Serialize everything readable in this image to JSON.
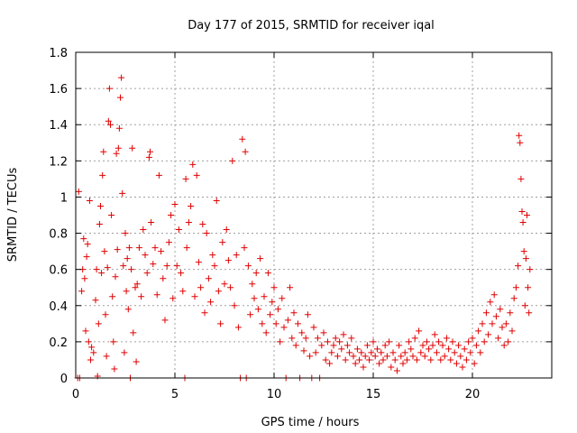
{
  "chart_data": {
    "type": "scatter",
    "title": "Day 177 of 2015, SRMTID for receiver iqal",
    "xlabel": "GPS time / hours",
    "ylabel": "SRMTID / TECUs",
    "xlim": [
      0,
      24
    ],
    "ylim": [
      0,
      1.8
    ],
    "xticks": [
      0,
      5,
      10,
      15,
      20
    ],
    "xtick_labels": [
      "0",
      "5",
      "10",
      "15",
      "20"
    ],
    "yticks": [
      0,
      0.2,
      0.4,
      0.6,
      0.8,
      1.0,
      1.2,
      1.4,
      1.6,
      1.8
    ],
    "ytick_labels": [
      "0",
      "0.2",
      "0.4",
      "0.6",
      "0.8",
      "1",
      "1.2",
      "1.4",
      "1.6",
      "1.8"
    ],
    "grid": true,
    "marker": "+",
    "color": "#e00000",
    "series": [
      {
        "name": "SRMTID",
        "points": [
          [
            0.1,
            0.0
          ],
          [
            0.15,
            1.03
          ],
          [
            0.2,
            0.0
          ],
          [
            0.3,
            0.48
          ],
          [
            0.35,
            0.6
          ],
          [
            0.4,
            0.77
          ],
          [
            0.45,
            0.55
          ],
          [
            0.5,
            0.26
          ],
          [
            0.55,
            0.67
          ],
          [
            0.6,
            0.74
          ],
          [
            0.65,
            0.2
          ],
          [
            0.7,
            0.98
          ],
          [
            0.75,
            0.1
          ],
          [
            0.8,
            0.17
          ],
          [
            0.9,
            0.14
          ],
          [
            1.0,
            0.43
          ],
          [
            1.05,
            0.6
          ],
          [
            1.1,
            0.01
          ],
          [
            1.15,
            0.3
          ],
          [
            1.2,
            0.85
          ],
          [
            1.25,
            0.95
          ],
          [
            1.3,
            0.58
          ],
          [
            1.35,
            1.12
          ],
          [
            1.4,
            1.25
          ],
          [
            1.45,
            0.7
          ],
          [
            1.5,
            0.35
          ],
          [
            1.55,
            0.12
          ],
          [
            1.6,
            0.61
          ],
          [
            1.65,
            1.42
          ],
          [
            1.7,
            1.6
          ],
          [
            1.75,
            1.4
          ],
          [
            1.8,
            0.9
          ],
          [
            1.85,
            0.45
          ],
          [
            1.9,
            0.2
          ],
          [
            1.95,
            0.05
          ],
          [
            2.0,
            0.56
          ],
          [
            2.05,
            1.24
          ],
          [
            2.1,
            0.71
          ],
          [
            2.15,
            1.27
          ],
          [
            2.2,
            1.38
          ],
          [
            2.25,
            1.55
          ],
          [
            2.3,
            1.66
          ],
          [
            2.35,
            1.02
          ],
          [
            2.4,
            0.62
          ],
          [
            2.45,
            0.14
          ],
          [
            2.5,
            0.8
          ],
          [
            2.55,
            0.48
          ],
          [
            2.6,
            0.66
          ],
          [
            2.65,
            0.38
          ],
          [
            2.7,
            0.72
          ],
          [
            2.75,
            0.0
          ],
          [
            2.8,
            0.6
          ],
          [
            2.85,
            1.27
          ],
          [
            2.9,
            0.25
          ],
          [
            3.0,
            0.5
          ],
          [
            3.05,
            0.09
          ],
          [
            3.1,
            0.52
          ],
          [
            3.2,
            0.72
          ],
          [
            3.3,
            0.45
          ],
          [
            3.4,
            0.82
          ],
          [
            3.5,
            0.68
          ],
          [
            3.6,
            0.58
          ],
          [
            3.7,
            1.22
          ],
          [
            3.75,
            1.25
          ],
          [
            3.8,
            0.86
          ],
          [
            3.9,
            0.63
          ],
          [
            4.0,
            0.72
          ],
          [
            4.1,
            0.46
          ],
          [
            4.2,
            1.12
          ],
          [
            4.3,
            0.7
          ],
          [
            4.4,
            0.55
          ],
          [
            4.5,
            0.32
          ],
          [
            4.6,
            0.62
          ],
          [
            4.7,
            0.75
          ],
          [
            4.8,
            0.9
          ],
          [
            4.9,
            0.44
          ],
          [
            5.0,
            0.96
          ],
          [
            5.1,
            0.62
          ],
          [
            5.2,
            0.82
          ],
          [
            5.3,
            0.58
          ],
          [
            5.4,
            0.48
          ],
          [
            5.5,
            0.0
          ],
          [
            5.55,
            1.1
          ],
          [
            5.6,
            0.72
          ],
          [
            5.7,
            0.86
          ],
          [
            5.8,
            0.95
          ],
          [
            5.9,
            1.18
          ],
          [
            6.0,
            0.45
          ],
          [
            6.1,
            1.12
          ],
          [
            6.2,
            0.64
          ],
          [
            6.3,
            0.5
          ],
          [
            6.4,
            0.85
          ],
          [
            6.5,
            0.36
          ],
          [
            6.6,
            0.8
          ],
          [
            6.7,
            0.55
          ],
          [
            6.8,
            0.42
          ],
          [
            6.9,
            0.68
          ],
          [
            7.0,
            0.62
          ],
          [
            7.1,
            0.98
          ],
          [
            7.2,
            0.48
          ],
          [
            7.3,
            0.3
          ],
          [
            7.4,
            0.75
          ],
          [
            7.5,
            0.52
          ],
          [
            7.6,
            0.82
          ],
          [
            7.7,
            0.65
          ],
          [
            7.8,
            0.5
          ],
          [
            7.9,
            1.2
          ],
          [
            8.0,
            0.4
          ],
          [
            8.1,
            0.68
          ],
          [
            8.2,
            0.28
          ],
          [
            8.3,
            0.0
          ],
          [
            8.4,
            1.32
          ],
          [
            8.5,
            0.72
          ],
          [
            8.55,
            1.25
          ],
          [
            8.6,
            0.0
          ],
          [
            8.7,
            0.62
          ],
          [
            8.8,
            0.35
          ],
          [
            8.9,
            0.52
          ],
          [
            9.0,
            0.44
          ],
          [
            9.1,
            0.58
          ],
          [
            9.2,
            0.38
          ],
          [
            9.3,
            0.66
          ],
          [
            9.4,
            0.3
          ],
          [
            9.5,
            0.45
          ],
          [
            9.6,
            0.25
          ],
          [
            9.7,
            0.58
          ],
          [
            9.8,
            0.35
          ],
          [
            9.9,
            0.42
          ],
          [
            10.0,
            0.5
          ],
          [
            10.1,
            0.3
          ],
          [
            10.2,
            0.38
          ],
          [
            10.3,
            0.2
          ],
          [
            10.4,
            0.44
          ],
          [
            10.5,
            0.28
          ],
          [
            10.6,
            0.0
          ],
          [
            10.7,
            0.32
          ],
          [
            10.8,
            0.5
          ],
          [
            10.9,
            0.22
          ],
          [
            11.0,
            0.36
          ],
          [
            11.1,
            0.18
          ],
          [
            11.2,
            0.3
          ],
          [
            11.3,
            0.0
          ],
          [
            11.4,
            0.25
          ],
          [
            11.5,
            0.15
          ],
          [
            11.6,
            0.22
          ],
          [
            11.7,
            0.35
          ],
          [
            11.8,
            0.12
          ],
          [
            11.9,
            0.0
          ],
          [
            12.0,
            0.28
          ],
          [
            12.1,
            0.14
          ],
          [
            12.2,
            0.22
          ],
          [
            12.3,
            0.0
          ],
          [
            12.4,
            0.18
          ],
          [
            12.5,
            0.25
          ],
          [
            12.6,
            0.1
          ],
          [
            12.7,
            0.2
          ],
          [
            12.8,
            0.08
          ],
          [
            12.9,
            0.14
          ],
          [
            13.0,
            0.18
          ],
          [
            13.1,
            0.22
          ],
          [
            13.2,
            0.12
          ],
          [
            13.3,
            0.2
          ],
          [
            13.4,
            0.16
          ],
          [
            13.5,
            0.24
          ],
          [
            13.6,
            0.1
          ],
          [
            13.7,
            0.18
          ],
          [
            13.8,
            0.14
          ],
          [
            13.9,
            0.22
          ],
          [
            14.0,
            0.12
          ],
          [
            14.1,
            0.08
          ],
          [
            14.2,
            0.16
          ],
          [
            14.3,
            0.1
          ],
          [
            14.4,
            0.14
          ],
          [
            14.5,
            0.06
          ],
          [
            14.6,
            0.12
          ],
          [
            14.7,
            0.18
          ],
          [
            14.8,
            0.1
          ],
          [
            14.9,
            0.14
          ],
          [
            15.0,
            0.2
          ],
          [
            15.1,
            0.12
          ],
          [
            15.2,
            0.16
          ],
          [
            15.3,
            0.08
          ],
          [
            15.4,
            0.14
          ],
          [
            15.5,
            0.1
          ],
          [
            15.6,
            0.18
          ],
          [
            15.7,
            0.12
          ],
          [
            15.8,
            0.2
          ],
          [
            15.9,
            0.06
          ],
          [
            16.0,
            0.14
          ],
          [
            16.1,
            0.1
          ],
          [
            16.2,
            0.04
          ],
          [
            16.3,
            0.18
          ],
          [
            16.4,
            0.12
          ],
          [
            16.5,
            0.08
          ],
          [
            16.6,
            0.14
          ],
          [
            16.7,
            0.1
          ],
          [
            16.8,
            0.2
          ],
          [
            16.9,
            0.16
          ],
          [
            17.0,
            0.12
          ],
          [
            17.1,
            0.22
          ],
          [
            17.2,
            0.1
          ],
          [
            17.3,
            0.26
          ],
          [
            17.4,
            0.14
          ],
          [
            17.5,
            0.18
          ],
          [
            17.6,
            0.12
          ],
          [
            17.7,
            0.2
          ],
          [
            17.8,
            0.16
          ],
          [
            17.9,
            0.1
          ],
          [
            18.0,
            0.18
          ],
          [
            18.1,
            0.24
          ],
          [
            18.2,
            0.14
          ],
          [
            18.3,
            0.2
          ],
          [
            18.4,
            0.1
          ],
          [
            18.5,
            0.18
          ],
          [
            18.6,
            0.12
          ],
          [
            18.7,
            0.22
          ],
          [
            18.8,
            0.16
          ],
          [
            18.9,
            0.1
          ],
          [
            19.0,
            0.2
          ],
          [
            19.1,
            0.14
          ],
          [
            19.2,
            0.08
          ],
          [
            19.3,
            0.18
          ],
          [
            19.4,
            0.12
          ],
          [
            19.5,
            0.06
          ],
          [
            19.6,
            0.16
          ],
          [
            19.7,
            0.1
          ],
          [
            19.8,
            0.2
          ],
          [
            19.9,
            0.14
          ],
          [
            20.0,
            0.22
          ],
          [
            20.1,
            0.08
          ],
          [
            20.2,
            0.18
          ],
          [
            20.3,
            0.26
          ],
          [
            20.4,
            0.14
          ],
          [
            20.5,
            0.3
          ],
          [
            20.6,
            0.2
          ],
          [
            20.7,
            0.36
          ],
          [
            20.8,
            0.24
          ],
          [
            20.9,
            0.42
          ],
          [
            21.0,
            0.3
          ],
          [
            21.1,
            0.46
          ],
          [
            21.2,
            0.34
          ],
          [
            21.3,
            0.22
          ],
          [
            21.4,
            0.38
          ],
          [
            21.5,
            0.28
          ],
          [
            21.6,
            0.18
          ],
          [
            21.7,
            0.3
          ],
          [
            21.8,
            0.2
          ],
          [
            21.9,
            0.36
          ],
          [
            22.0,
            0.26
          ],
          [
            22.1,
            0.44
          ],
          [
            22.2,
            0.5
          ],
          [
            22.3,
            0.62
          ],
          [
            22.35,
            1.34
          ],
          [
            22.4,
            1.3
          ],
          [
            22.45,
            1.1
          ],
          [
            22.5,
            0.92
          ],
          [
            22.55,
            0.86
          ],
          [
            22.6,
            0.7
          ],
          [
            22.65,
            0.4
          ],
          [
            22.7,
            0.66
          ],
          [
            22.75,
            0.9
          ],
          [
            22.8,
            0.5
          ],
          [
            22.85,
            0.36
          ],
          [
            22.9,
            0.6
          ]
        ]
      }
    ]
  }
}
